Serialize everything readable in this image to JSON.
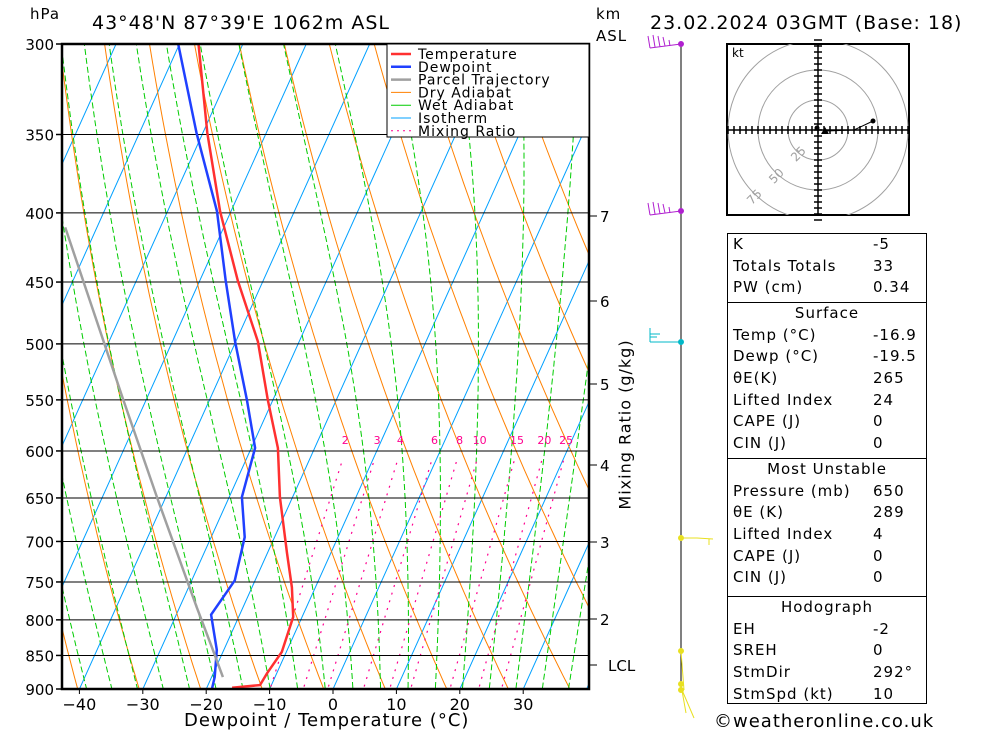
{
  "header": {
    "hpa_label": "hPa",
    "location": "43°48'N 87°39'E 1062m ASL",
    "km_label": "km",
    "asl_label": "ASL",
    "datetime": "23.02.2024 03GMT (Base: 18)"
  },
  "legend": [
    {
      "label": "Temperature",
      "color": "#ff3030"
    },
    {
      "label": "Dewpoint",
      "color": "#2040ff"
    },
    {
      "label": "Parcel Trajectory",
      "color": "#a0a0a0"
    },
    {
      "label": "Dry Adiabat",
      "color": "#ff8000"
    },
    {
      "label": "Wet Adiabat",
      "color": "#00cc00"
    },
    {
      "label": "Isotherm",
      "color": "#00a0ff"
    },
    {
      "label": "Mixing Ratio",
      "color": "#ff0090"
    }
  ],
  "chart_data": {
    "type": "line",
    "title": "43°48'N 87°39'E 1062m ASL",
    "xlabel": "Dewpoint / Temperature (°C)",
    "ylabel": "hPa",
    "right_axis_label": "Mixing Ratio (g/kg)",
    "xlim": [
      -43,
      37
    ],
    "ylim": [
      900,
      300
    ],
    "x_ticks": [
      "-40",
      "-30",
      "-20",
      "-10",
      "0",
      "10",
      "20",
      "30"
    ],
    "y_ticks": [
      "300",
      "350",
      "400",
      "450",
      "500",
      "550",
      "600",
      "650",
      "700",
      "750",
      "800",
      "850",
      "900"
    ],
    "km_ticks": [
      "7",
      "6",
      "5",
      "4",
      "3",
      "2",
      "LCL"
    ],
    "mixing_ratio_labels": [
      "2",
      "3",
      "4",
      "6",
      "8",
      "10",
      "15",
      "20",
      "25"
    ],
    "series": [
      {
        "name": "Temperature",
        "pressure": [
          898,
          894,
          876,
          845,
          796,
          757,
          714,
          649,
          597,
          550,
          498,
          449,
          399,
          349,
          300
        ],
        "values": [
          -16.0,
          -11.8,
          -11.5,
          -10.7,
          -11.4,
          -13.7,
          -16.9,
          -22.0,
          -25.8,
          -30.8,
          -36.5,
          -44.0,
          -51.7,
          -59.3,
          -67.0
        ]
      },
      {
        "name": "Dewpoint",
        "pressure": [
          900,
          882,
          842,
          793,
          748,
          695,
          649,
          597,
          550,
          498,
          449,
          399,
          349,
          300
        ],
        "values": [
          -19.1,
          -19.5,
          -21.1,
          -24.5,
          -23.2,
          -24.7,
          -28.0,
          -29.4,
          -34.1,
          -40.1,
          -45.9,
          -52.2,
          -61.0,
          -70.2
        ]
      },
      {
        "name": "Parcel Trajectory",
        "pressure": [
          882,
          839,
          783,
          649,
          550,
          410
        ],
        "values": [
          -18.2,
          -22.0,
          -27.3,
          -41.4,
          -53.6,
          -75.0
        ]
      }
    ]
  },
  "hodograph": {
    "unit_label": "kt",
    "ring_labels": [
      "25",
      "50",
      "75"
    ]
  },
  "stats": {
    "indices": [
      {
        "k": "K",
        "v": "-5"
      },
      {
        "k": "Totals Totals",
        "v": "33"
      },
      {
        "k": "PW (cm)",
        "v": "0.34"
      }
    ],
    "surface": {
      "title": "Surface",
      "rows": [
        {
          "k": "Temp (°C)",
          "v": "-16.9"
        },
        {
          "k": "Dewp (°C)",
          "v": "-19.5"
        },
        {
          "k": "θE(K)",
          "v": "265"
        },
        {
          "k": "Lifted Index",
          "v": "24"
        },
        {
          "k": "CAPE (J)",
          "v": "0"
        },
        {
          "k": "CIN (J)",
          "v": "0"
        }
      ]
    },
    "most_unstable": {
      "title": "Most Unstable",
      "rows": [
        {
          "k": "Pressure (mb)",
          "v": "650"
        },
        {
          "k": "θE (K)",
          "v": "289"
        },
        {
          "k": "Lifted Index",
          "v": "4"
        },
        {
          "k": "CAPE (J)",
          "v": "0"
        },
        {
          "k": "CIN (J)",
          "v": "0"
        }
      ]
    },
    "hodograph": {
      "title": "Hodograph",
      "rows": [
        {
          "k": "EH",
          "v": "-2"
        },
        {
          "k": "SREH",
          "v": "0"
        },
        {
          "k": "StmDir",
          "v": "292°"
        },
        {
          "k": "StmSpd (kt)",
          "v": "10"
        }
      ]
    }
  },
  "footer": {
    "copyright": "©weatheronline.co.uk"
  }
}
